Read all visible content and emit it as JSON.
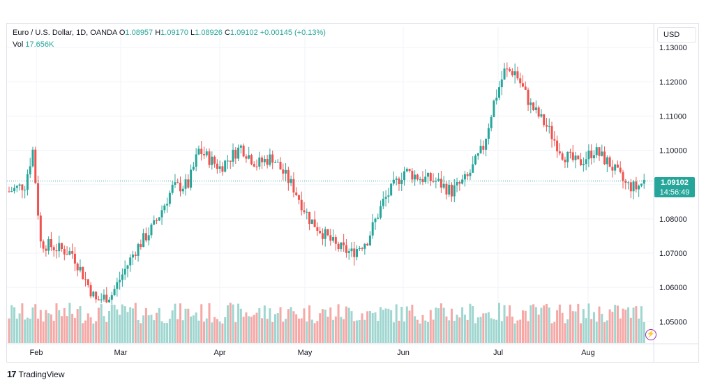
{
  "legend": {
    "symbol": "Euro / U.S. Dollar, 1D, OANDA",
    "open_label": "O",
    "open": "1.08957",
    "high_label": "H",
    "high": "1.09170",
    "low_label": "L",
    "low": "1.08926",
    "close_label": "C",
    "close": "1.09102",
    "change": "+0.00145 (+0.13%)",
    "vol_label": "Vol",
    "vol": "17.656K"
  },
  "currency_button": "USD",
  "price_tag": {
    "price": "1.09102",
    "countdown": "14:56:49"
  },
  "brand": {
    "logo_mark": "17",
    "name": "TradingView"
  },
  "colors": {
    "up": "#26a69a",
    "down": "#ef5350",
    "vol_up": "#9fd6d0",
    "vol_down": "#f5a8a6"
  },
  "chart_data": {
    "type": "candlestick",
    "y_ticks": [
      "1.13000",
      "1.12000",
      "1.11000",
      "1.10000",
      "1.09000",
      "1.08000",
      "1.07000",
      "1.06000",
      "1.05000"
    ],
    "x_ticks": [
      "Feb",
      "Mar",
      "Apr",
      "May",
      "Jun",
      "Jul",
      "Aug"
    ],
    "current_price": 1.09102,
    "ylim": [
      1.045,
      1.132
    ]
  }
}
